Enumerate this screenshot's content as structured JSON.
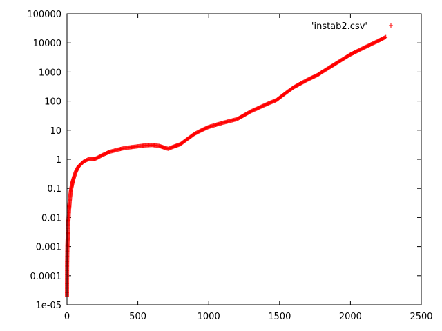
{
  "chart_data": {
    "type": "scatter",
    "title": "",
    "xlabel": "",
    "ylabel": "",
    "xlim": [
      0,
      2500
    ],
    "ylim": [
      1e-05,
      100000
    ],
    "yscale": "log",
    "grid": false,
    "legend_position": "top-right",
    "x_ticks": [
      {
        "value": 0,
        "label": "0"
      },
      {
        "value": 500,
        "label": "500"
      },
      {
        "value": 1000,
        "label": "1000"
      },
      {
        "value": 1500,
        "label": "1500"
      },
      {
        "value": 2000,
        "label": "2000"
      },
      {
        "value": 2500,
        "label": "2500"
      }
    ],
    "y_ticks": [
      {
        "value": 1e-05,
        "label": "1e-05"
      },
      {
        "value": 0.0001,
        "label": "0.0001"
      },
      {
        "value": 0.001,
        "label": "0.001"
      },
      {
        "value": 0.01,
        "label": "0.01"
      },
      {
        "value": 0.1,
        "label": "0.1"
      },
      {
        "value": 1,
        "label": "1"
      },
      {
        "value": 10,
        "label": "10"
      },
      {
        "value": 100,
        "label": "100"
      },
      {
        "value": 1000,
        "label": "1000"
      },
      {
        "value": 10000,
        "label": "10000"
      },
      {
        "value": 100000,
        "label": "100000"
      }
    ],
    "series": [
      {
        "name": "'instab2.csv'",
        "color": "#ff0000",
        "marker": "plus",
        "x": [
          0,
          0.5,
          1,
          2,
          3,
          4,
          5,
          6,
          8,
          10,
          12,
          15,
          18,
          22,
          26,
          30,
          35,
          40,
          50,
          60,
          70,
          80,
          100,
          120,
          150,
          180,
          200,
          210,
          250,
          300,
          350,
          400,
          450,
          500,
          550,
          600,
          650,
          700,
          715,
          750,
          800,
          850,
          900,
          950,
          1000,
          1100,
          1200,
          1300,
          1400,
          1480,
          1550,
          1600,
          1700,
          1770,
          1800,
          1900,
          2000,
          2100,
          2200,
          2250
        ],
        "y": [
          2e-05,
          0.0001,
          0.00025,
          0.0005,
          0.001,
          0.0015,
          0.002,
          0.003,
          0.005,
          0.008,
          0.012,
          0.02,
          0.03,
          0.05,
          0.07,
          0.1,
          0.13,
          0.17,
          0.25,
          0.35,
          0.45,
          0.55,
          0.7,
          0.85,
          1.0,
          1.05,
          1.05,
          1.1,
          1.4,
          1.8,
          2.1,
          2.4,
          2.6,
          2.8,
          3.0,
          3.1,
          2.9,
          2.4,
          2.3,
          2.7,
          3.3,
          5.0,
          7.5,
          10,
          13,
          18,
          24,
          45,
          75,
          110,
          200,
          300,
          550,
          800,
          1000,
          2000,
          4000,
          7000,
          12000,
          16000
        ]
      }
    ]
  }
}
